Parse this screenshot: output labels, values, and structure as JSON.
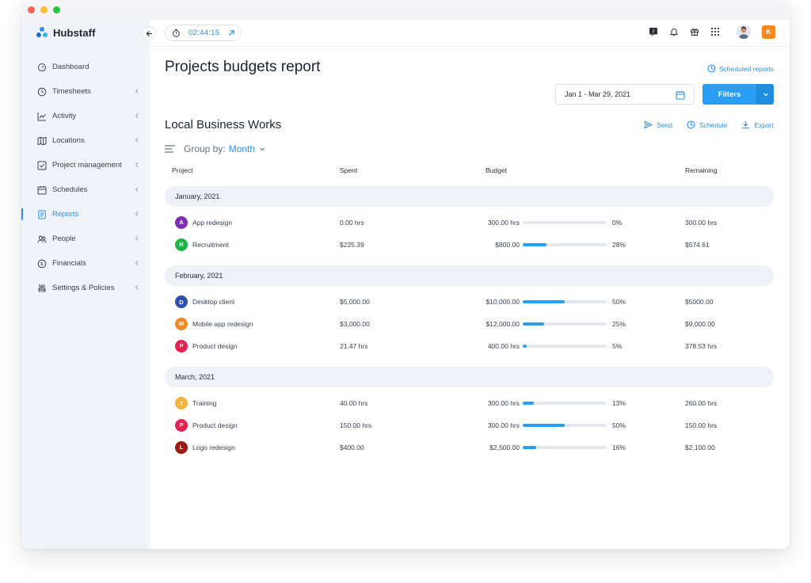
{
  "app": {
    "brand": "Hubstaff",
    "timer": "02:44:15",
    "org_badge": "K",
    "accent": "#2a8fe6"
  },
  "sidebar": {
    "items": [
      {
        "label": "Dashboard",
        "icon": "dashboard-icon",
        "chevron": false,
        "active": false
      },
      {
        "label": "Timesheets",
        "icon": "clock-icon",
        "chevron": true,
        "active": false
      },
      {
        "label": "Activity",
        "icon": "activity-chart-icon",
        "chevron": true,
        "active": false
      },
      {
        "label": "Locations",
        "icon": "map-icon",
        "chevron": true,
        "active": false
      },
      {
        "label": "Project management",
        "icon": "checkbox-icon",
        "chevron": true,
        "active": false
      },
      {
        "label": "Schedules",
        "icon": "calendar-icon",
        "chevron": true,
        "active": false
      },
      {
        "label": "Reports",
        "icon": "report-icon",
        "chevron": true,
        "active": true
      },
      {
        "label": "People",
        "icon": "people-icon",
        "chevron": true,
        "active": false
      },
      {
        "label": "Financials",
        "icon": "dollar-icon",
        "chevron": true,
        "active": false
      },
      {
        "label": "Settings & Policies",
        "icon": "sliders-icon",
        "chevron": true,
        "active": false
      }
    ]
  },
  "header": {
    "title": "Projects budgets report",
    "scheduled_reports": "Scheduled reports",
    "date_range": "Jan 1 - Mar 29, 2021",
    "filters_label": "Filters"
  },
  "report": {
    "org_name": "Local Business Works",
    "actions": {
      "send": "Send",
      "schedule": "Schedule",
      "export": "Export"
    },
    "group_by_label": "Group by:",
    "group_by_value": "Month",
    "columns": {
      "project": "Project",
      "spent": "Spent",
      "budget": "Budget",
      "remaining": "Remaining"
    },
    "groups": [
      {
        "label": "January, 2021",
        "rows": [
          {
            "initial": "A",
            "color": "#7b2fb5",
            "project": "App redesign",
            "spent": "0.00 hrs",
            "budget": "300.00 hrs",
            "progress": 0,
            "pct": "0%",
            "remaining": "300.00 hrs"
          },
          {
            "initial": "R",
            "color": "#1bb545",
            "project": "Recruitment",
            "spent": "$225.39",
            "budget": "$800.00",
            "progress": 28,
            "pct": "28%",
            "remaining": "$574.61"
          }
        ]
      },
      {
        "label": "February, 2021",
        "rows": [
          {
            "initial": "D",
            "color": "#2f4fb0",
            "project": "Desktop client",
            "spent": "$5,000.00",
            "budget": "$10,000.00",
            "progress": 50,
            "pct": "50%",
            "remaining": "$5000.00"
          },
          {
            "initial": "M",
            "color": "#f08a24",
            "project": "Mobile app redesign",
            "spent": "$3,000.00",
            "budget": "$12,000.00",
            "progress": 25,
            "pct": "25%",
            "remaining": "$9,000.00"
          },
          {
            "initial": "P",
            "color": "#e8214f",
            "project": "Product design",
            "spent": "21.47 hrs",
            "budget": "400.00 hrs",
            "progress": 5,
            "pct": "5%",
            "remaining": "378.53 hrs"
          }
        ]
      },
      {
        "label": "March, 2021",
        "rows": [
          {
            "initial": "T",
            "color": "#f2b23e",
            "project": "Training",
            "spent": "40.00 hrs",
            "budget": "300.00 hrs",
            "progress": 13,
            "pct": "13%",
            "remaining": "260.00 hrs"
          },
          {
            "initial": "P",
            "color": "#e8214f",
            "project": "Product design",
            "spent": "150.00 hrs",
            "budget": "300.00 hrs",
            "progress": 50,
            "pct": "50%",
            "remaining": "150.00 hrs"
          },
          {
            "initial": "L",
            "color": "#9b1c14",
            "project": "Logo redesign",
            "spent": "$400.00",
            "budget": "$2,500.00",
            "progress": 16,
            "pct": "16%",
            "remaining": "$2,100.00"
          }
        ]
      }
    ]
  }
}
